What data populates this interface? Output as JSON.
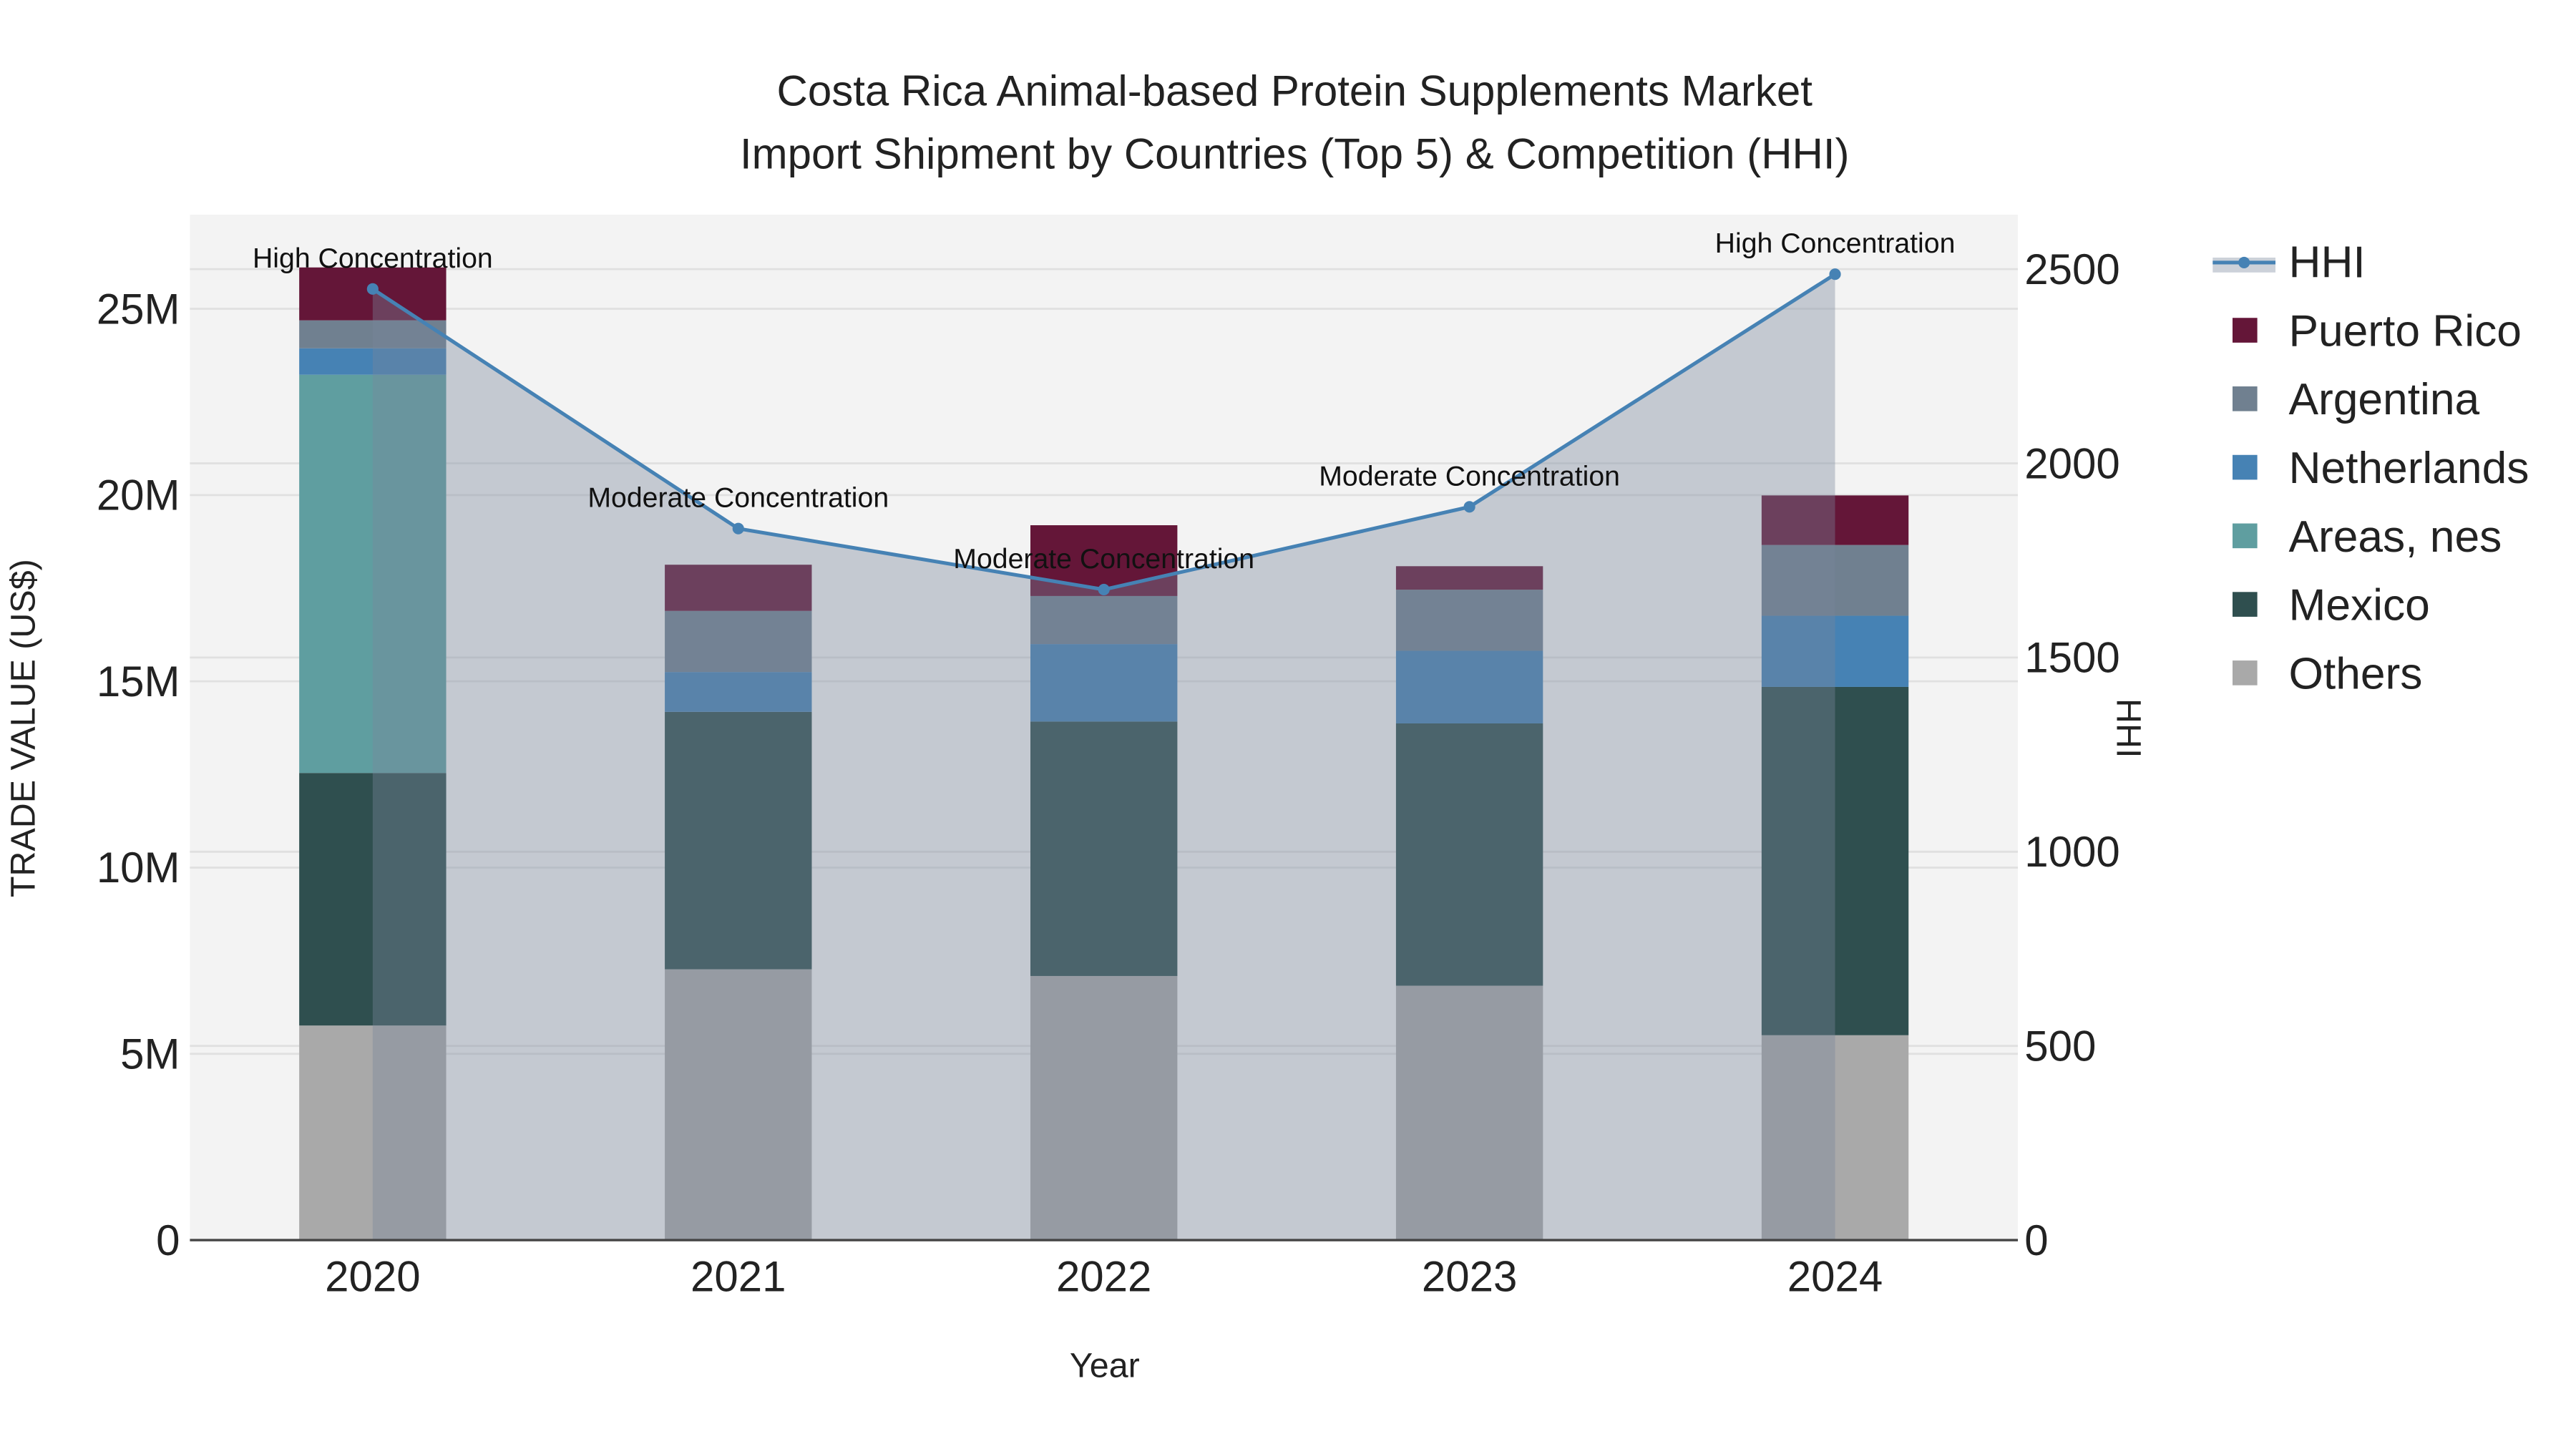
{
  "chart_data": {
    "type": "bar",
    "stacked": true,
    "title_line1": "Costa Rica Animal-based Protein Supplements Market",
    "title_line2": "Import Shipment by Countries (Top 5) & Competition (HHI)",
    "xlabel": "Year",
    "ylabel": "TRADE VALUE (US$)",
    "y2label": "HHI",
    "categories": [
      "2020",
      "2021",
      "2022",
      "2023",
      "2024"
    ],
    "ylim": [
      0,
      27500000
    ],
    "y2lim": [
      0,
      2640
    ],
    "yticks": [
      {
        "v": 0,
        "label": "0"
      },
      {
        "v": 5000000,
        "label": "5M"
      },
      {
        "v": 10000000,
        "label": "10M"
      },
      {
        "v": 15000000,
        "label": "15M"
      },
      {
        "v": 20000000,
        "label": "20M"
      },
      {
        "v": 25000000,
        "label": "25M"
      }
    ],
    "y2ticks": [
      {
        "v": 0,
        "label": "0"
      },
      {
        "v": 500,
        "label": "500"
      },
      {
        "v": 1000,
        "label": "1000"
      },
      {
        "v": 1500,
        "label": "1500"
      },
      {
        "v": 2000,
        "label": "2000"
      },
      {
        "v": 2500,
        "label": "2500"
      }
    ],
    "series": [
      {
        "name": "Others",
        "color": "#a9a9a9",
        "values": [
          5760000,
          7270000,
          7090000,
          6830000,
          5500000
        ]
      },
      {
        "name": "Mexico",
        "color": "#2f4f4f",
        "values": [
          6780000,
          6910000,
          6830000,
          7040000,
          9350000
        ]
      },
      {
        "name": "Areas, nes",
        "color": "#5f9ea0",
        "values": [
          10690000,
          0,
          0,
          0,
          0
        ]
      },
      {
        "name": "Netherlands",
        "color": "#4682b4",
        "values": [
          710000,
          1070000,
          2080000,
          1950000,
          1910000
        ]
      },
      {
        "name": "Argentina",
        "color": "#708090",
        "values": [
          750000,
          1640000,
          1290000,
          1640000,
          1900000
        ]
      },
      {
        "name": "Puerto Rico",
        "color": "#641638",
        "values": [
          1420000,
          1240000,
          1900000,
          630000,
          1330000
        ]
      }
    ],
    "hhi": {
      "name": "HHI",
      "color": "#4682b4",
      "values": [
        2449,
        1832,
        1675,
        1888,
        2487
      ],
      "annotations": [
        "High Concentration",
        "Moderate Concentration",
        "Moderate Concentration",
        "Moderate Concentration",
        "High Concentration"
      ]
    },
    "legend_order": [
      "HHI",
      "Puerto Rico",
      "Argentina",
      "Netherlands",
      "Areas, nes",
      "Mexico",
      "Others"
    ],
    "legend_position": "right"
  }
}
